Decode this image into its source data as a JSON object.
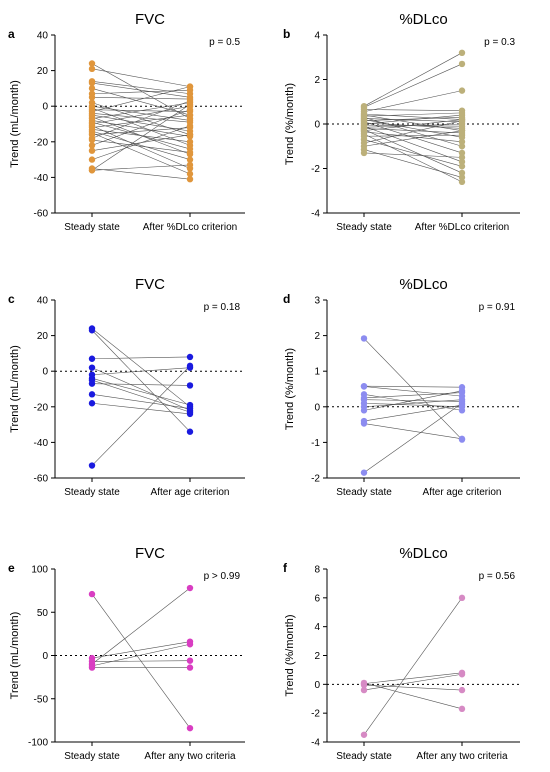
{
  "chart_data": [
    {
      "type": "scatter",
      "panel_letter": "a",
      "title": "FVC",
      "ylabel": "Trend (mL/month)",
      "categories": [
        "Steady state",
        "After %DLco criterion"
      ],
      "ylim": [
        -60,
        40
      ],
      "yticks": [
        40,
        20,
        0,
        -20,
        -40,
        -60
      ],
      "pvalue": "p = 0.5",
      "color": "#e0963c",
      "pairs": [
        [
          24,
          -7
        ],
        [
          21,
          11
        ],
        [
          14,
          7
        ],
        [
          13,
          5
        ],
        [
          10,
          -5
        ],
        [
          7,
          9
        ],
        [
          5,
          4
        ],
        [
          2,
          -16
        ],
        [
          0,
          -8
        ],
        [
          -1,
          -22
        ],
        [
          -2,
          -3
        ],
        [
          -3,
          11
        ],
        [
          -4,
          -9
        ],
        [
          -5,
          -14
        ],
        [
          -6,
          -27
        ],
        [
          -7,
          2
        ],
        [
          -8,
          -17
        ],
        [
          -9,
          -24
        ],
        [
          -10,
          0
        ],
        [
          -11,
          -35
        ],
        [
          -12,
          -5
        ],
        [
          -13,
          -20
        ],
        [
          -14,
          -30
        ],
        [
          -15,
          -38
        ],
        [
          -16,
          -12
        ],
        [
          -18,
          3
        ],
        [
          -19,
          -26
        ],
        [
          -22,
          -2
        ],
        [
          -25,
          -16
        ],
        [
          -30,
          -11
        ],
        [
          -35,
          -41
        ],
        [
          -36,
          1
        ],
        [
          -36,
          -33
        ]
      ]
    },
    {
      "type": "scatter",
      "panel_letter": "b",
      "title": "%DLco",
      "ylabel": "Trend (%/month)",
      "categories": [
        "Steady state",
        "After %DLco criterion"
      ],
      "ylim": [
        -4,
        4
      ],
      "yticks": [
        4,
        2,
        0,
        -2,
        -4
      ],
      "pvalue": "p = 0.3",
      "color": "#bcb07a",
      "pairs": [
        [
          0.8,
          3.2
        ],
        [
          0.75,
          2.7
        ],
        [
          0.65,
          0.6
        ],
        [
          0.55,
          1.5
        ],
        [
          0.45,
          0.2
        ],
        [
          0.4,
          -0.3
        ],
        [
          0.35,
          0.5
        ],
        [
          0.3,
          -1.0
        ],
        [
          0.25,
          0.1
        ],
        [
          0.2,
          -0.6
        ],
        [
          0.15,
          0.3
        ],
        [
          0.1,
          -1.3
        ],
        [
          0.05,
          -0.2
        ],
        [
          0.0,
          0.4
        ],
        [
          -0.05,
          -0.1
        ],
        [
          -0.1,
          -1.7
        ],
        [
          -0.15,
          0.0
        ],
        [
          -0.2,
          -0.4
        ],
        [
          -0.25,
          -2.2
        ],
        [
          -0.3,
          0.2
        ],
        [
          -0.35,
          -0.8
        ],
        [
          -0.45,
          -2.6
        ],
        [
          -0.55,
          -0.5
        ],
        [
          -0.7,
          -1.9
        ],
        [
          -0.85,
          0.15
        ],
        [
          -1.0,
          -0.3
        ],
        [
          -1.15,
          -2.4
        ],
        [
          -1.3,
          -1.5
        ]
      ]
    },
    {
      "type": "scatter",
      "panel_letter": "c",
      "title": "FVC",
      "ylabel": "Trend (mL/month)",
      "categories": [
        "Steady state",
        "After age criterion"
      ],
      "ylim": [
        -60,
        40
      ],
      "yticks": [
        40,
        20,
        0,
        -20,
        -40,
        -60
      ],
      "pvalue": "p = 0.18",
      "color": "#1a1adf",
      "pairs": [
        [
          24,
          -20
        ],
        [
          23,
          -34
        ],
        [
          7,
          8
        ],
        [
          2,
          -22
        ],
        [
          -2,
          2
        ],
        [
          -4,
          -19
        ],
        [
          -5,
          -23
        ],
        [
          -7,
          -8
        ],
        [
          -13,
          -21
        ],
        [
          -18,
          -24
        ],
        [
          -53,
          3
        ]
      ]
    },
    {
      "type": "scatter",
      "panel_letter": "d",
      "title": "%DLco",
      "ylabel": "Trend (%/month)",
      "categories": [
        "Steady state",
        "After age criterion"
      ],
      "ylim": [
        -2,
        3
      ],
      "yticks": [
        3,
        2,
        1,
        0,
        -1,
        -2
      ],
      "pvalue": "p = 0.91",
      "color": "#8c8cf0",
      "pairs": [
        [
          1.92,
          -0.92
        ],
        [
          0.58,
          0.55
        ],
        [
          0.57,
          0.3
        ],
        [
          0.35,
          -0.1
        ],
        [
          0.25,
          0.4
        ],
        [
          0.2,
          0.15
        ],
        [
          0.1,
          0.0
        ],
        [
          0.0,
          0.2
        ],
        [
          -0.1,
          0.45
        ],
        [
          -0.4,
          0.05
        ],
        [
          -0.47,
          -0.9
        ],
        [
          -1.85,
          0.1
        ]
      ]
    },
    {
      "type": "scatter",
      "panel_letter": "e",
      "title": "FVC",
      "ylabel": "Trend (mL/month)",
      "categories": [
        "Steady state",
        "After any two criteria"
      ],
      "ylim": [
        -100,
        100
      ],
      "yticks": [
        100,
        50,
        0,
        -50,
        -100
      ],
      "pvalue": "p > 0.99",
      "color": "#d93dc2",
      "pairs": [
        [
          71,
          -84
        ],
        [
          -3,
          16
        ],
        [
          -7,
          -6
        ],
        [
          -10,
          78
        ],
        [
          -12,
          13
        ],
        [
          -14,
          -14
        ]
      ]
    },
    {
      "type": "scatter",
      "panel_letter": "f",
      "title": "%DLco",
      "ylabel": "Trend (%/month)",
      "categories": [
        "Steady state",
        "After any two criteria"
      ],
      "ylim": [
        -4,
        8
      ],
      "yticks": [
        8,
        6,
        4,
        2,
        0,
        -2,
        -4
      ],
      "pvalue": "p = 0.56",
      "color": "#d68ac4",
      "pairs": [
        [
          0.1,
          -1.7
        ],
        [
          0.05,
          0.8
        ],
        [
          -0.05,
          -0.4
        ],
        [
          -0.4,
          0.7
        ],
        [
          -3.5,
          6.0
        ]
      ]
    }
  ]
}
